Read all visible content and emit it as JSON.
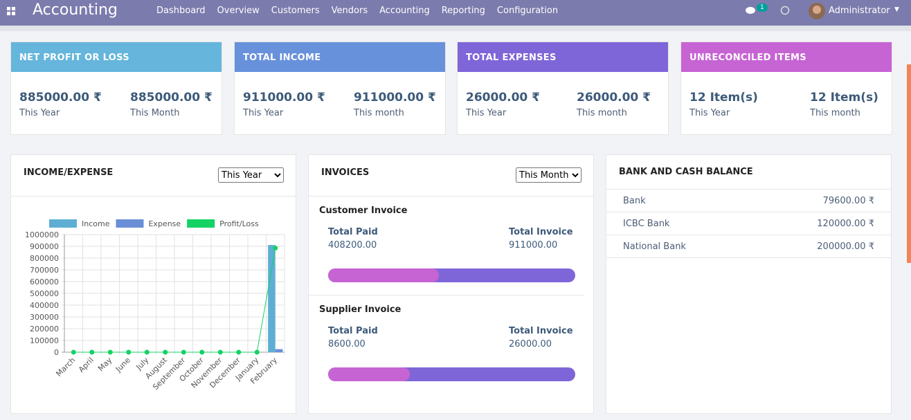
{
  "navbar": {
    "app_title": "Accounting",
    "menu": [
      "Dashboard",
      "Overview",
      "Customers",
      "Vendors",
      "Accounting",
      "Reporting",
      "Configuration"
    ],
    "notifications": 1,
    "user": "Administrator"
  },
  "cards": [
    {
      "title": "NET PROFIT OR LOSS",
      "items": [
        {
          "value": "885000.00 ₹",
          "period": "This Year"
        },
        {
          "value": "885000.00 ₹",
          "period": "This Month"
        }
      ]
    },
    {
      "title": "TOTAL INCOME",
      "items": [
        {
          "value": "911000.00 ₹",
          "period": "This Year"
        },
        {
          "value": "911000.00 ₹",
          "period": "This month"
        }
      ]
    },
    {
      "title": "TOTAL EXPENSES",
      "items": [
        {
          "value": "26000.00 ₹",
          "period": "This Year"
        },
        {
          "value": "26000.00 ₹",
          "period": "This month"
        }
      ]
    },
    {
      "title": "UNRECONCILED ITEMS",
      "items": [
        {
          "value": "12 Item(s)",
          "period": "This Year"
        },
        {
          "value": "12 Item(s)",
          "period": "This month"
        }
      ]
    }
  ],
  "income_expense": {
    "title": "INCOME/EXPENSE",
    "filter": "This Year",
    "chart": {
      "type": "bar",
      "categories": [
        "March",
        "April",
        "May",
        "June",
        "July",
        "August",
        "September",
        "October",
        "November",
        "December",
        "January",
        "February"
      ],
      "series": [
        {
          "name": "Income",
          "color": "#5eaed4",
          "values": [
            0,
            0,
            0,
            0,
            0,
            0,
            0,
            0,
            0,
            0,
            0,
            911000
          ]
        },
        {
          "name": "Expense",
          "color": "#6a8fd6",
          "values": [
            0,
            0,
            0,
            0,
            0,
            0,
            0,
            0,
            0,
            0,
            0,
            26000
          ]
        },
        {
          "name": "Profit/Loss",
          "color": "#14d264",
          "type": "line",
          "values": [
            0,
            0,
            0,
            0,
            0,
            0,
            0,
            0,
            0,
            0,
            0,
            885000
          ]
        }
      ],
      "ylim": [
        0,
        1000000
      ],
      "yticks": [
        0,
        100000,
        200000,
        300000,
        400000,
        500000,
        600000,
        700000,
        800000,
        900000,
        1000000
      ],
      "grid": true
    }
  },
  "invoices": {
    "title": "INVOICES",
    "filter": "This Month",
    "customer": {
      "title": "Customer Invoice",
      "paid_label": "Total Paid",
      "paid": {
        "value": 408200,
        "label": "408200.00"
      },
      "total_label": "Total Invoice",
      "total": {
        "value": 911000,
        "label": "911000.00"
      }
    },
    "supplier": {
      "title": "Supplier Invoice",
      "paid_label": "Total Paid",
      "paid": {
        "value": 8600,
        "label": "8600.00"
      },
      "total_label": "Total Invoice",
      "total": {
        "value": 26000,
        "label": "26000.00"
      }
    }
  },
  "bank": {
    "title": "BANK AND CASH BALANCE",
    "rows": [
      {
        "name": "Bank",
        "balance": "79600.00 ₹"
      },
      {
        "name": "ICBC Bank",
        "balance": "120000.00 ₹"
      },
      {
        "name": "National Bank",
        "balance": "200000.00 ₹"
      }
    ]
  }
}
